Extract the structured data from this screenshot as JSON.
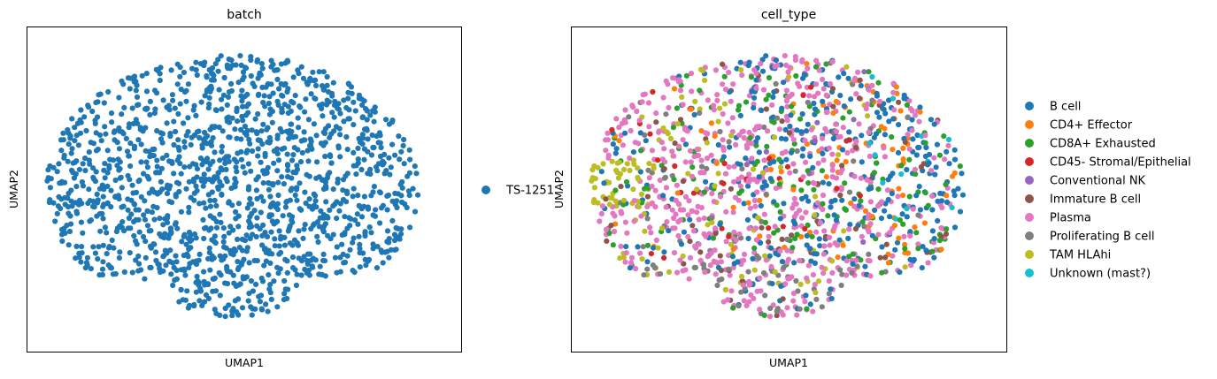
{
  "chart_data": [
    {
      "type": "scatter",
      "title": "batch",
      "xlabel": "UMAP1",
      "ylabel": "UMAP2",
      "xticks": "none",
      "yticks": "none",
      "grid": false,
      "legend_position": "right",
      "series": [
        {
          "name": "TS-1251",
          "color": "#1f77b4"
        }
      ]
    },
    {
      "type": "scatter",
      "title": "cell_type",
      "xlabel": "UMAP1",
      "ylabel": "UMAP2",
      "xticks": "none",
      "yticks": "none",
      "grid": false,
      "legend_position": "right",
      "series": [
        {
          "name": "B cell",
          "color": "#1f77b4"
        },
        {
          "name": "CD4+ Effector",
          "color": "#ff7f0e"
        },
        {
          "name": "CD8A+ Exhausted",
          "color": "#2ca02c"
        },
        {
          "name": "CD45- Stromal/Epithelial",
          "color": "#d62728"
        },
        {
          "name": "Conventional NK",
          "color": "#9467bd"
        },
        {
          "name": "Immature B cell",
          "color": "#8c564b"
        },
        {
          "name": "Plasma",
          "color": "#e377c2"
        },
        {
          "name": "Proliferating B cell",
          "color": "#7f7f7f"
        },
        {
          "name": "TAM HLAhi",
          "color": "#bcbd22"
        },
        {
          "name": "Unknown (mast?)",
          "color": "#17becf"
        }
      ]
    }
  ]
}
